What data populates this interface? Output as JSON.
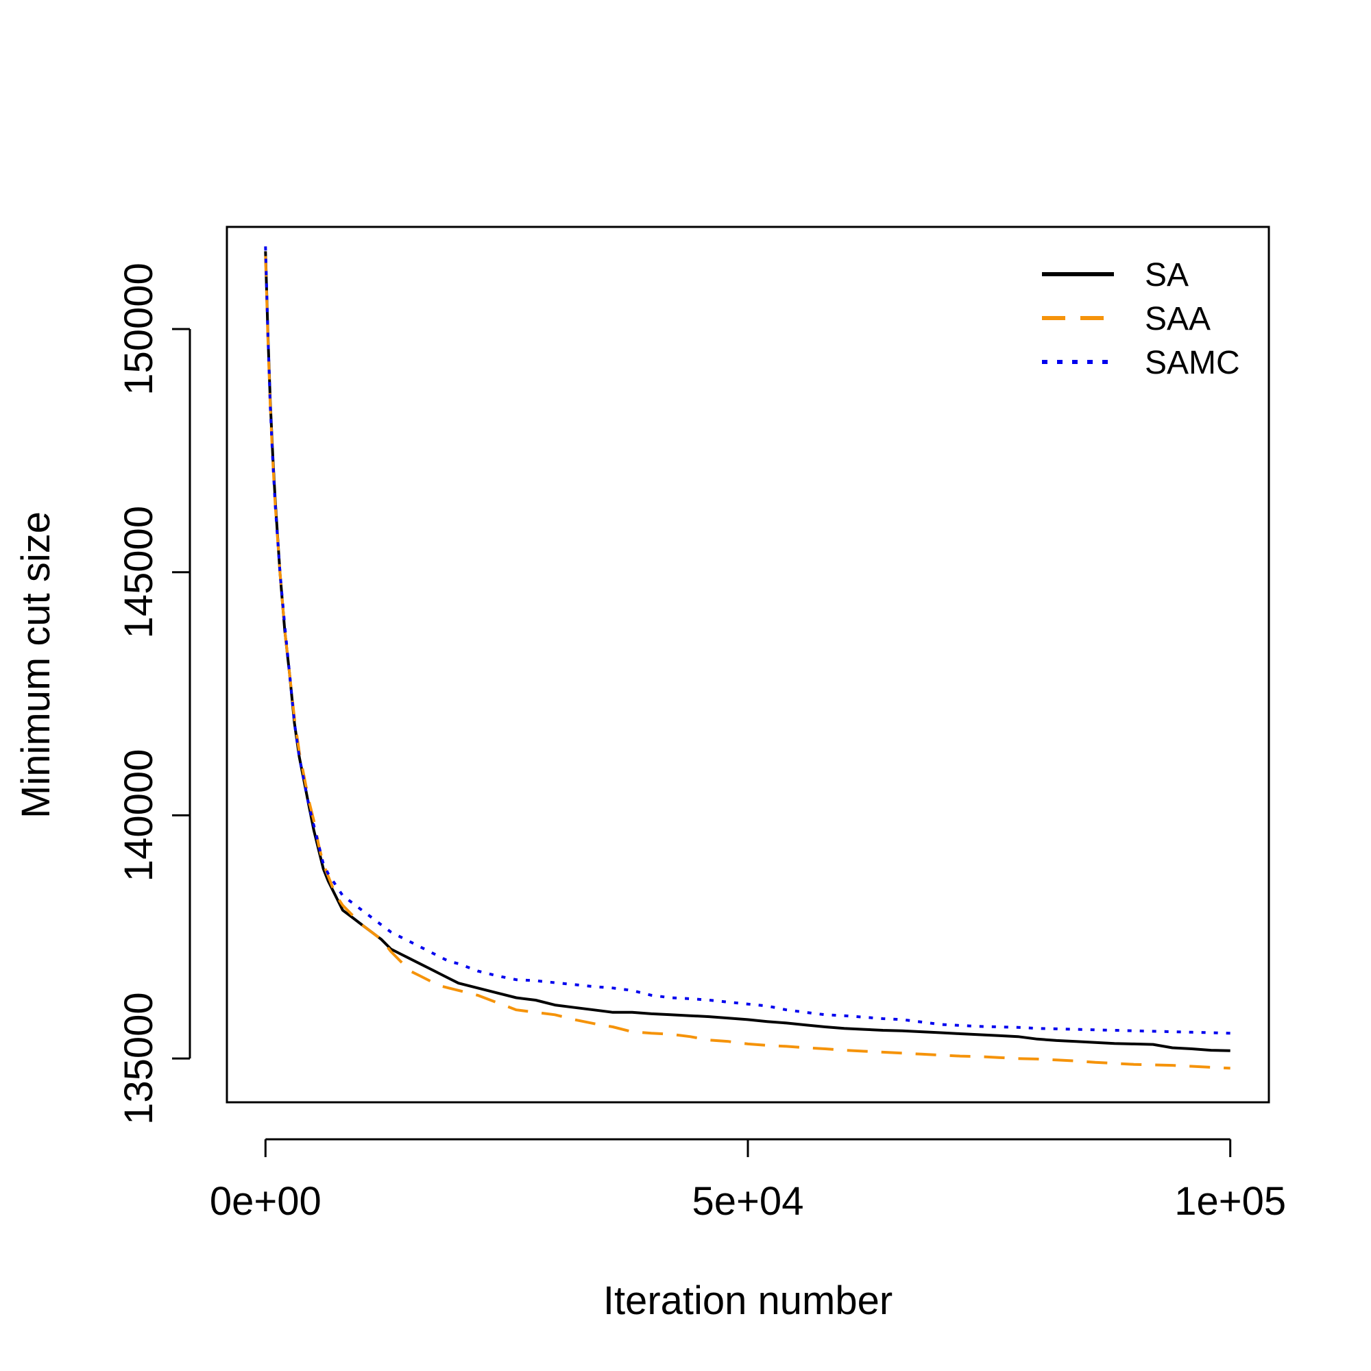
{
  "chart_data": {
    "type": "line",
    "title": "",
    "xlabel": "Iteration number",
    "ylabel": "Minimum cut size",
    "xlim": [
      -4000,
      104000
    ],
    "ylim": [
      134100,
      152100
    ],
    "x_ticks": [
      0,
      50000,
      100000
    ],
    "x_tick_labels": [
      "0e+00",
      "5e+04",
      "1e+05"
    ],
    "y_ticks": [
      135000,
      140000,
      145000,
      150000
    ],
    "y_tick_labels": [
      "135000",
      "140000",
      "145000",
      "150000"
    ],
    "grid": false,
    "legend_position": "top-right",
    "series": [
      {
        "name": "SA",
        "color": "#000000",
        "line_style": "solid",
        "x": [
          0,
          250,
          500,
          750,
          1000,
          1500,
          2000,
          2500,
          3000,
          3500,
          4000,
          4500,
          5000,
          5500,
          6000,
          6500,
          7000,
          7500,
          8000,
          9000,
          10000,
          11000,
          12000,
          13000,
          14000,
          15000,
          16000,
          17000,
          18000,
          19000,
          20000,
          22000,
          24000,
          26000,
          28000,
          30000,
          32000,
          34000,
          36000,
          38000,
          40000,
          42000,
          44000,
          46000,
          48000,
          50000,
          52000,
          54000,
          56000,
          58000,
          60000,
          62000,
          64000,
          66000,
          68000,
          70000,
          72000,
          74000,
          76000,
          78000,
          80000,
          82000,
          84000,
          86000,
          88000,
          90000,
          92000,
          94000,
          96000,
          98000,
          100000
        ],
        "y": [
          151600,
          149900,
          148500,
          147400,
          146500,
          145000,
          143800,
          142900,
          141900,
          141200,
          140700,
          140200,
          139700,
          139300,
          138900,
          138650,
          138450,
          138250,
          138050,
          137900,
          137750,
          137600,
          137450,
          137250,
          137150,
          137050,
          136950,
          136850,
          136750,
          136650,
          136550,
          136450,
          136350,
          136250,
          136200,
          136100,
          136050,
          136000,
          135950,
          135950,
          135920,
          135900,
          135880,
          135860,
          135830,
          135800,
          135760,
          135730,
          135690,
          135650,
          135620,
          135600,
          135580,
          135570,
          135550,
          135530,
          135510,
          135490,
          135470,
          135450,
          135400,
          135370,
          135350,
          135330,
          135310,
          135300,
          135290,
          135220,
          135200,
          135170,
          135160
        ]
      },
      {
        "name": "SAA",
        "color": "#F5930A",
        "line_style": "dashed",
        "x": [
          0,
          250,
          500,
          750,
          1000,
          1500,
          2000,
          2500,
          3000,
          3500,
          4000,
          4500,
          5000,
          5500,
          6000,
          6500,
          7000,
          7500,
          8000,
          9000,
          10000,
          11000,
          12000,
          13000,
          14000,
          15000,
          16000,
          17000,
          18000,
          19000,
          20000,
          22000,
          24000,
          26000,
          28000,
          30000,
          32000,
          34000,
          36000,
          38000,
          40000,
          42000,
          44000,
          46000,
          48000,
          50000,
          52000,
          54000,
          56000,
          58000,
          60000,
          62000,
          64000,
          66000,
          68000,
          70000,
          72000,
          74000,
          76000,
          78000,
          80000,
          82000,
          84000,
          86000,
          88000,
          90000,
          92000,
          94000,
          96000,
          98000,
          100000
        ],
        "y": [
          151500,
          149800,
          148400,
          147300,
          146400,
          145000,
          143800,
          142900,
          142000,
          141300,
          140800,
          140300,
          139900,
          139400,
          139000,
          138750,
          138500,
          138300,
          138150,
          137950,
          137750,
          137600,
          137450,
          137200,
          137000,
          136800,
          136700,
          136600,
          136500,
          136450,
          136400,
          136300,
          136150,
          136000,
          135950,
          135900,
          135800,
          135720,
          135650,
          135550,
          135520,
          135500,
          135450,
          135380,
          135350,
          135300,
          135270,
          135250,
          135220,
          135200,
          135170,
          135150,
          135130,
          135110,
          135090,
          135070,
          135050,
          135040,
          135020,
          135000,
          134990,
          134970,
          134950,
          134920,
          134900,
          134880,
          134870,
          134860,
          134840,
          134820,
          134800
        ]
      },
      {
        "name": "SAMC",
        "color": "#0000EE",
        "line_style": "dotted",
        "x": [
          0,
          250,
          500,
          750,
          1000,
          1500,
          2000,
          2500,
          3000,
          3500,
          4000,
          4500,
          5000,
          5500,
          6000,
          6500,
          7000,
          7500,
          8000,
          9000,
          10000,
          11000,
          12000,
          13000,
          14000,
          15000,
          16000,
          17000,
          18000,
          19000,
          20000,
          22000,
          24000,
          26000,
          28000,
          30000,
          32000,
          34000,
          36000,
          38000,
          40000,
          42000,
          44000,
          46000,
          48000,
          50000,
          52000,
          54000,
          56000,
          58000,
          60000,
          62000,
          64000,
          66000,
          68000,
          70000,
          72000,
          74000,
          76000,
          78000,
          80000,
          82000,
          84000,
          86000,
          88000,
          90000,
          92000,
          94000,
          96000,
          98000,
          100000
        ],
        "y": [
          151700,
          149900,
          148400,
          147300,
          146400,
          145000,
          143900,
          142900,
          141900,
          141200,
          140700,
          140200,
          139800,
          139400,
          139000,
          138800,
          138650,
          138500,
          138350,
          138200,
          138050,
          137900,
          137750,
          137600,
          137500,
          137400,
          137300,
          137200,
          137100,
          137000,
          136950,
          136800,
          136700,
          136620,
          136600,
          136560,
          136520,
          136480,
          136450,
          136400,
          136300,
          136250,
          136230,
          136200,
          136160,
          136120,
          136080,
          136000,
          135950,
          135900,
          135880,
          135850,
          135820,
          135800,
          135750,
          135700,
          135680,
          135660,
          135650,
          135640,
          135620,
          135610,
          135600,
          135590,
          135580,
          135570,
          135560,
          135550,
          135540,
          135530,
          135520
        ]
      }
    ]
  }
}
